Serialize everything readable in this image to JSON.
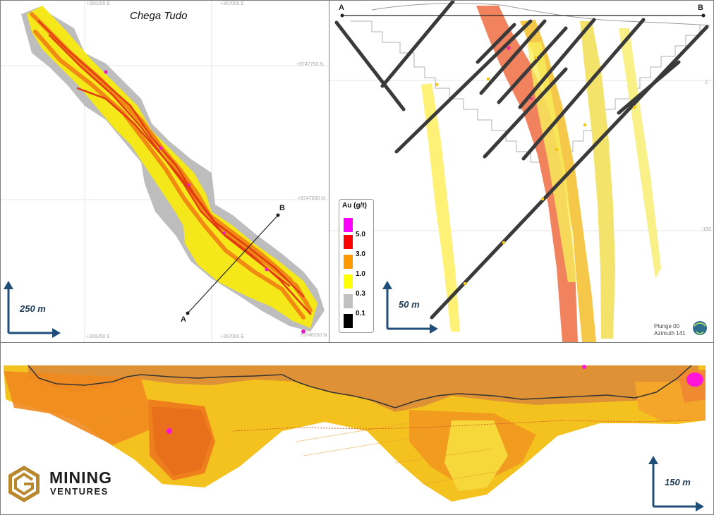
{
  "plan_view": {
    "title": "Chega Tudo",
    "grid_labels": [
      "+356250 E",
      "+357000 E",
      "+9747750 N",
      "+9747000 N",
      "+356250 E",
      "+357000 E",
      "+9746250 N"
    ],
    "scale": "250 m",
    "section_start": "A",
    "section_end": "B"
  },
  "section_view": {
    "section_start": "A",
    "section_end": "B",
    "grid_labels": [
      "0",
      "-150"
    ],
    "scale": "50 m",
    "legend": {
      "title": "Au (g/t)",
      "items": [
        {
          "label": "5.0",
          "color": "#ff00ff"
        },
        {
          "label": "3.0",
          "color": "#ff0000"
        },
        {
          "label": "1.0",
          "color": "#ff9900"
        },
        {
          "label": "0.3",
          "color": "#ffff00"
        },
        {
          "label": "0.1",
          "color": "#c0c0c0"
        },
        {
          "label": "",
          "color": "#000000"
        }
      ]
    },
    "orientation": {
      "plunge": "Plunge 00",
      "azimuth": "Azimuth 141"
    }
  },
  "long_section": {
    "scale": "150 m"
  },
  "logo": {
    "line1": "MINING",
    "line2": "VENTURES"
  },
  "colors": {
    "scale_arrow": "#1f4e79",
    "drillhole": "#3a3a3a",
    "ore_high": "#ff3300",
    "ore_mid": "#ff9900",
    "ore_low": "#ffff33",
    "halo": "#bcbcbc"
  }
}
